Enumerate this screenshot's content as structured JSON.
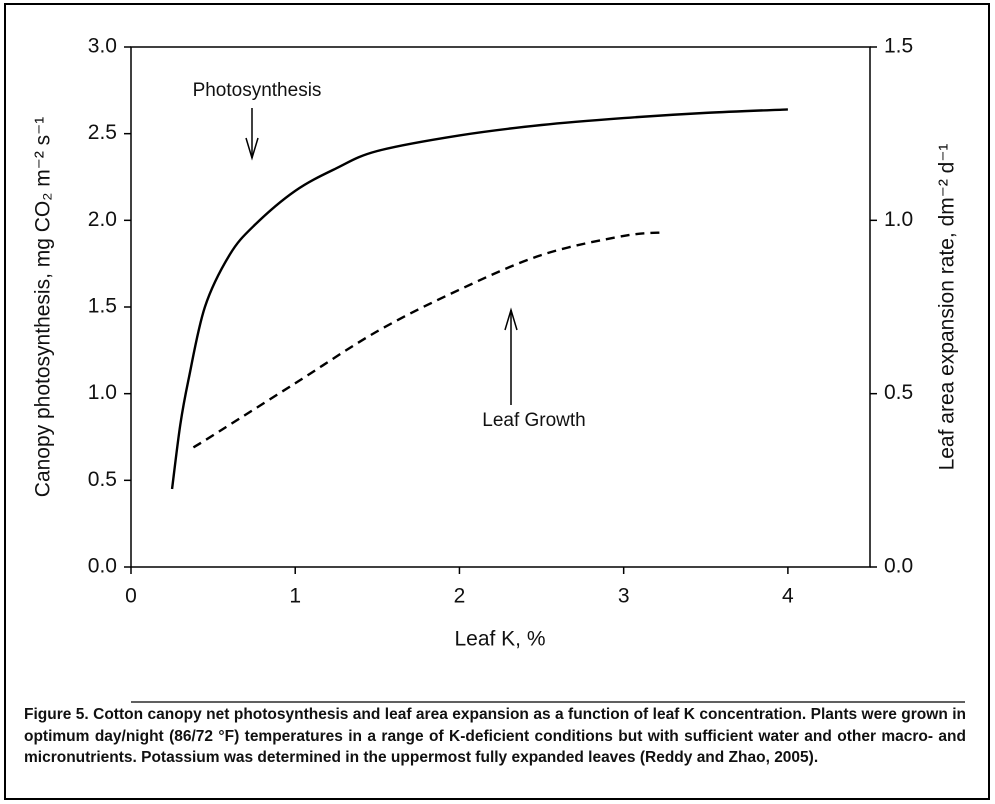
{
  "chart_data": {
    "type": "line",
    "xlabel": "Leaf K, %",
    "ylabel": "Canopy photosynthesis, mg CO₂ m⁻² s⁻¹",
    "y2label": "Leaf area expansion rate, dm⁻² d⁻¹",
    "xlim": [
      0,
      4.5
    ],
    "xticks": [
      0,
      1,
      2,
      3,
      4
    ],
    "ylim": [
      0,
      3
    ],
    "yticks": [
      {
        "value": 0,
        "label": "0.0"
      },
      {
        "value": 0.5,
        "label": "0.5"
      },
      {
        "value": 1,
        "label": "1.0"
      },
      {
        "value": 1.5,
        "label": "1.5"
      },
      {
        "value": 2,
        "label": "2.0"
      },
      {
        "value": 2.5,
        "label": "2.5"
      },
      {
        "value": 3,
        "label": "3.0"
      }
    ],
    "y2lim": [
      0,
      1.5
    ],
    "y2ticks": [
      {
        "value": 0,
        "label": "0.0"
      },
      {
        "value": 0.5,
        "label": "0.5"
      },
      {
        "value": 1,
        "label": "1.0"
      },
      {
        "value": 1.5,
        "label": "1.5"
      }
    ],
    "series": [
      {
        "name": "Photosynthesis",
        "color": "#000000",
        "dash": "solid",
        "x": [
          0.25,
          0.3,
          0.35,
          0.45,
          0.6,
          0.75,
          1,
          1.25,
          1.5,
          2,
          2.5,
          3,
          3.5,
          4
        ],
        "values": [
          0.45,
          0.82,
          1.08,
          1.5,
          1.8,
          1.97,
          2.17,
          2.3,
          2.4,
          2.49,
          2.55,
          2.59,
          2.62,
          2.64
        ]
      },
      {
        "name": "Leaf Growth",
        "color": "#000000",
        "dash": "dashed",
        "axis": "y2",
        "x": [
          0.38,
          0.5,
          1,
          1.5,
          2,
          2.5,
          3,
          3.25
        ],
        "values": [
          0.345,
          0.38,
          0.53,
          0.68,
          0.8,
          0.9,
          0.955,
          0.965
        ]
      }
    ],
    "caption": "Figure 5. Cotton canopy net photosynthesis and leaf area expansion as a function of leaf K concentration. Plants were grown in optimum day/night (86/72 °F) temperatures in a range of K-deficient conditions but with sufficient water and other macro- and micronutrients. Potassium was determined in the uppermost fully expanded leaves (Reddy and Zhao, 2005)."
  }
}
